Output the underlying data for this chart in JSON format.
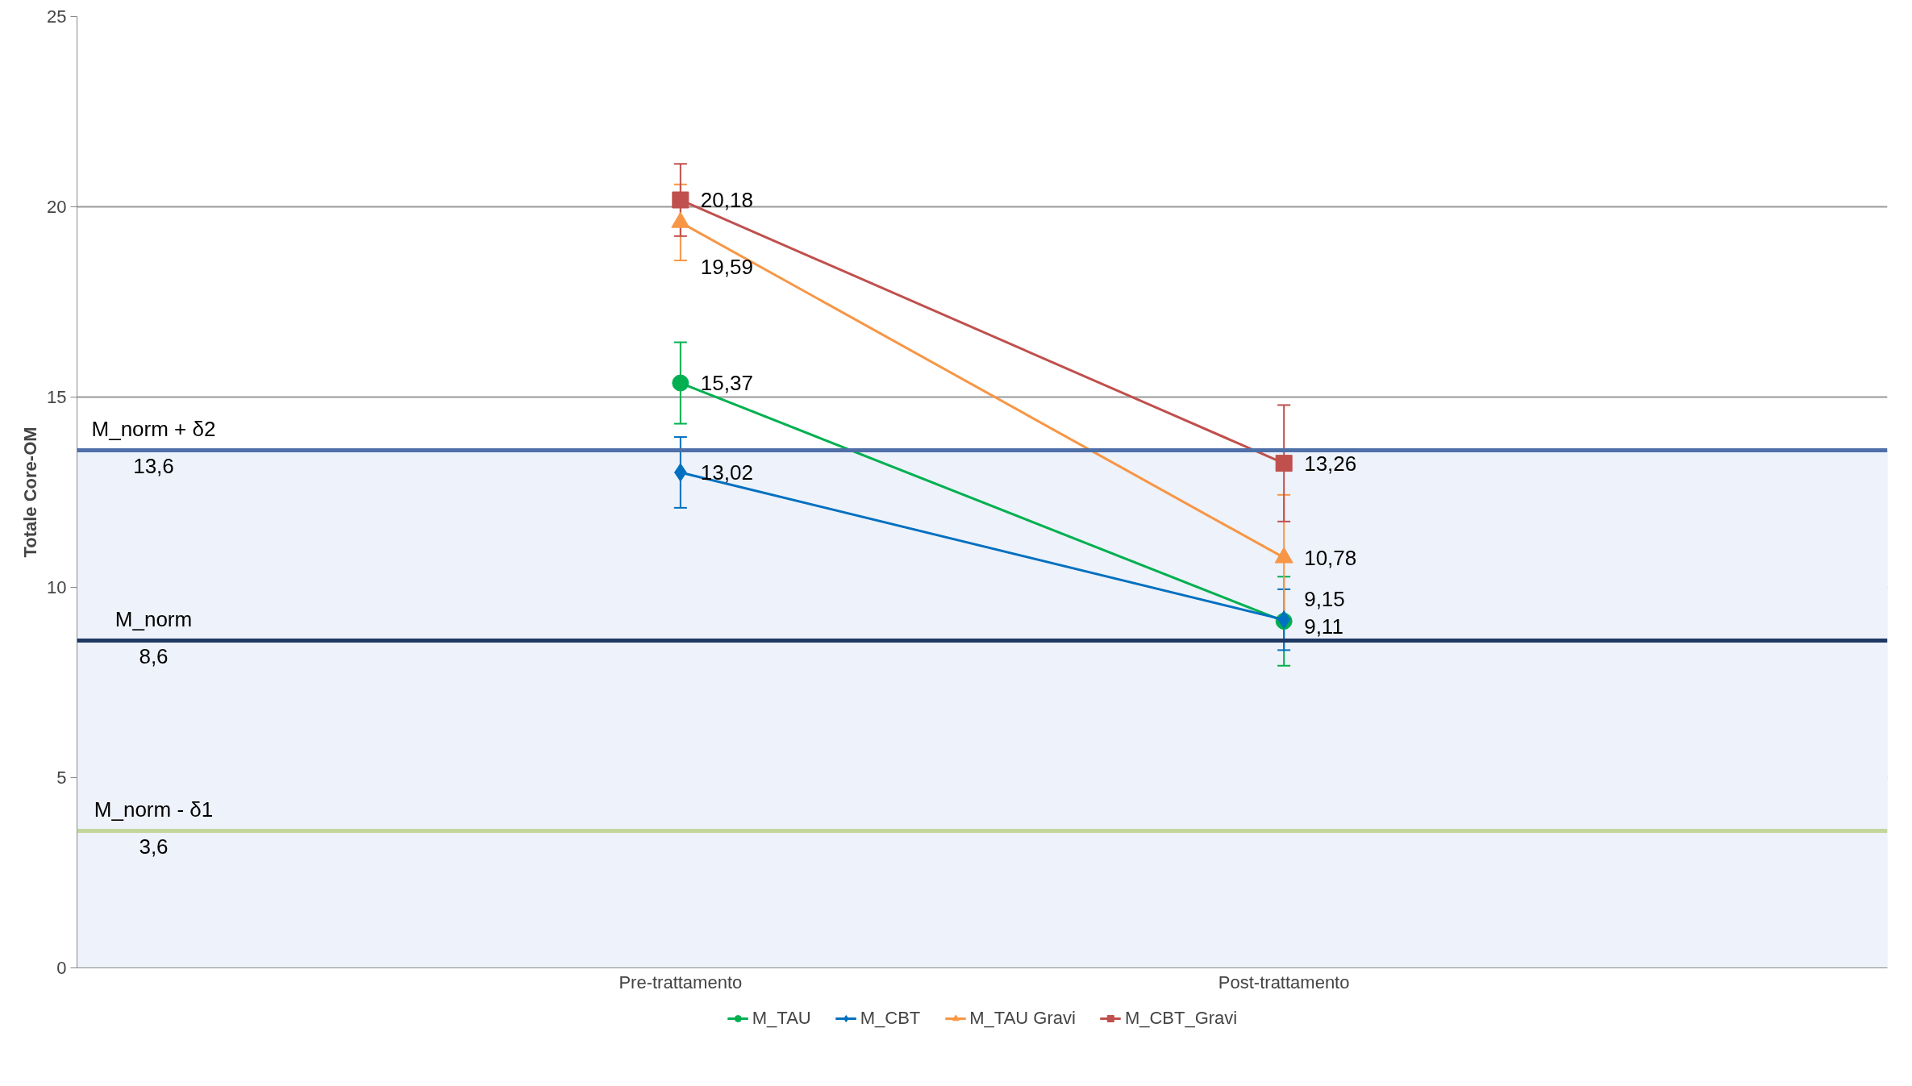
{
  "chart_data": {
    "type": "line",
    "ylabel": "Totale Core-OM",
    "categories": [
      "Pre-trattamento",
      "Post-trattamento"
    ],
    "series": [
      {
        "name": "M_TAU",
        "color": "#00b050",
        "marker": "circle",
        "values": [
          15.37,
          9.11
        ],
        "value_labels": [
          "15,37",
          "9,11"
        ],
        "errors": [
          1.07,
          1.17
        ]
      },
      {
        "name": "M_CBT",
        "color": "#0070c0",
        "marker": "diamond",
        "values": [
          13.02,
          9.15
        ],
        "value_labels": [
          "13,02",
          "9,15"
        ],
        "errors": [
          0.93,
          0.8
        ]
      },
      {
        "name": "M_TAU Gravi",
        "color": "#f79646",
        "marker": "triangle",
        "values": [
          19.59,
          10.78
        ],
        "value_labels": [
          "19,59",
          "10,78"
        ],
        "errors": [
          1.0,
          1.65
        ]
      },
      {
        "name": "M_CBT_Gravi",
        "color": "#c0504d",
        "marker": "square",
        "values": [
          20.18,
          13.26
        ],
        "value_labels": [
          "20,18",
          "13,26"
        ],
        "errors": [
          0.95,
          1.53
        ]
      }
    ],
    "ylim": [
      0,
      25
    ],
    "yticks": [
      0,
      5,
      10,
      15,
      20,
      25
    ],
    "ref_lines": [
      {
        "axis": "y",
        "value": 13.6,
        "label": "M_norm + δ2",
        "color": "#4f6fa8"
      },
      {
        "axis": "y",
        "value": 8.6,
        "label": "M_norm",
        "color": "#1f3864"
      },
      {
        "axis": "y",
        "value": 3.6,
        "label": "M_norm - δ1",
        "color": "#c3d69b"
      }
    ],
    "annotations": [
      {
        "text": "13,6",
        "y": 13.6
      },
      {
        "text": "8,6",
        "y": 8.6
      },
      {
        "text": "3,6",
        "y": 3.6
      }
    ],
    "bands": [
      {
        "axis": "y",
        "from": 0,
        "to": 13.6,
        "color": "#eef2fa"
      }
    ],
    "grid": "y",
    "legend": "bottom",
    "line_style": "solid"
  }
}
